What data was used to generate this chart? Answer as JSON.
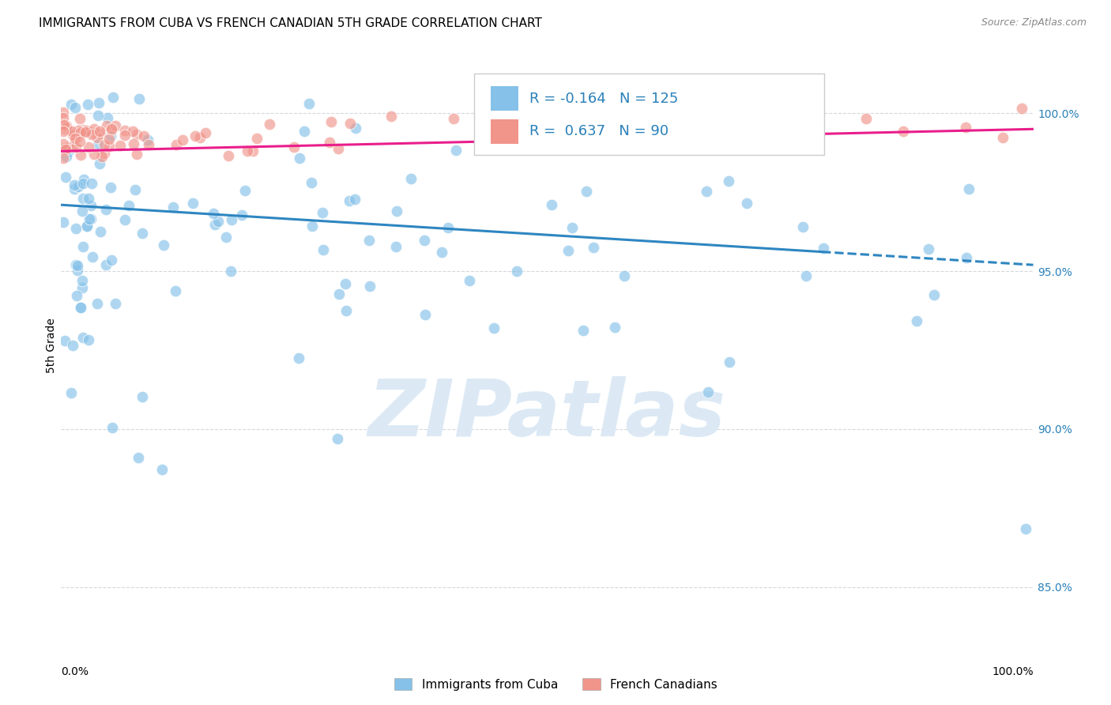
{
  "title": "IMMIGRANTS FROM CUBA VS FRENCH CANADIAN 5TH GRADE CORRELATION CHART",
  "source": "Source: ZipAtlas.com",
  "ylabel": "5th Grade",
  "ylabel_right_ticks": [
    85.0,
    90.0,
    95.0,
    100.0
  ],
  "xlim": [
    0.0,
    100.0
  ],
  "ylim": [
    83.5,
    101.8
  ],
  "legend_blue_label": "Immigrants from Cuba",
  "legend_pink_label": "French Canadians",
  "blue_R": -0.164,
  "blue_N": 125,
  "pink_R": 0.637,
  "pink_N": 90,
  "blue_color": "#85c1e9",
  "pink_color": "#f1948a",
  "blue_line_color": "#2e86c1",
  "pink_line_color": "#e91e8c",
  "watermark": "ZIPatlas",
  "watermark_color": "#dce9f5",
  "title_fontsize": 11,
  "source_fontsize": 9,
  "right_tick_color": "#2980b9",
  "grid_color": "#d5d8dc"
}
